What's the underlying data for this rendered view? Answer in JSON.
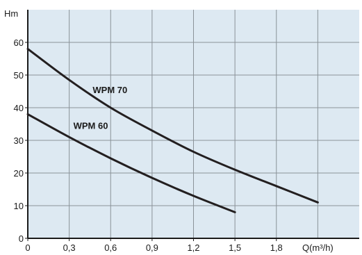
{
  "chart_data": {
    "type": "line",
    "title": "",
    "xlabel": "Q(m³/h)",
    "ylabel": "Hm",
    "xlim": [
      0,
      2.4
    ],
    "ylim": [
      0,
      70
    ],
    "x_ticks": [
      "0",
      "0,3",
      "0,6",
      "0,9",
      "1,2",
      "1,5",
      "1,8"
    ],
    "y_ticks": [
      "0",
      "10",
      "20",
      "30",
      "40",
      "50",
      "60"
    ],
    "grid": true,
    "series": [
      {
        "name": "WPM 70",
        "x": [
          0,
          0.3,
          0.6,
          0.9,
          1.2,
          1.5,
          1.8,
          2.1
        ],
        "y": [
          58,
          48.5,
          40,
          33,
          26.5,
          21,
          16,
          11
        ]
      },
      {
        "name": "WPM 60",
        "x": [
          0,
          0.3,
          0.6,
          0.9,
          1.2,
          1.5
        ],
        "y": [
          38,
          31,
          24.5,
          18.5,
          13,
          8
        ]
      }
    ]
  },
  "colors": {
    "plot_background": "#dde9f2",
    "grid": "#8a9298",
    "axis": "#1a1a1a",
    "curve": "#231f20",
    "text": "#1a1a1a"
  }
}
